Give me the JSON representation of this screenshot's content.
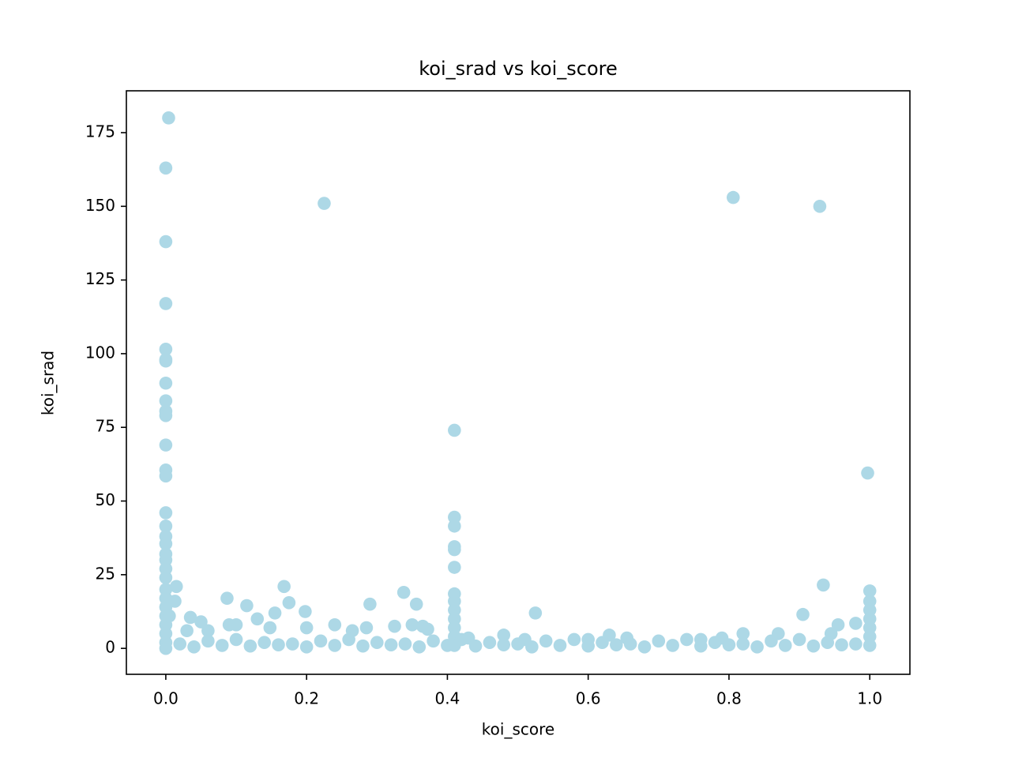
{
  "chart_data": {
    "type": "scatter",
    "title": "koi_srad vs koi_score",
    "x_label": "koi_score",
    "y_label": "koi_srad",
    "color": "#add8e6",
    "xlim": [
      -0.056,
      1.057
    ],
    "ylim": [
      -8.8,
      189.2
    ],
    "xticks": [
      {
        "value": 0,
        "label": "0.0"
      },
      0.2,
      0.4,
      0.6,
      0.8,
      {
        "value": 1,
        "label": "1.0"
      }
    ],
    "yticks": [
      0,
      25,
      50,
      75,
      100,
      125,
      150,
      175
    ],
    "grid": false,
    "x": [
      0.004,
      0,
      0,
      0,
      0,
      0,
      0,
      0,
      0,
      0,
      0,
      0,
      0,
      0,
      0,
      0,
      0,
      0,
      0,
      0,
      0,
      0,
      0,
      0,
      0,
      0,
      0,
      0,
      0,
      0,
      0.015,
      0.013,
      0.005,
      0.225,
      0.806,
      0.929,
      0.41,
      0.41,
      0.41,
      0.41,
      0.41,
      0.41,
      0.41,
      0.41,
      0.41,
      0.41,
      0.41,
      0.41,
      0.41,
      0.997,
      1,
      1,
      1,
      1,
      1,
      1,
      1,
      0.934,
      0.905,
      0.525,
      0.087,
      0.115,
      0.168,
      0.175,
      0.155,
      0.198,
      0.29,
      0.338,
      0.356,
      0.035,
      0.05,
      0.13,
      0.148,
      0.2,
      0.24,
      0.325,
      0.35,
      0.365,
      0.372,
      0.03,
      0.06,
      0.09,
      0.1,
      0.285,
      0.265,
      0.955,
      0.98,
      0.945,
      0.48,
      0.63,
      0.655,
      0.82,
      0.87,
      0.6,
      0.79,
      0.76,
      0.43,
      0.51,
      0.02,
      0.04,
      0.06,
      0.08,
      0.1,
      0.12,
      0.14,
      0.16,
      0.18,
      0.2,
      0.22,
      0.24,
      0.26,
      0.28,
      0.3,
      0.32,
      0.34,
      0.36,
      0.38,
      0.4,
      0.42,
      0.44,
      0.46,
      0.48,
      0.5,
      0.52,
      0.54,
      0.56,
      0.58,
      0.6,
      0.62,
      0.64,
      0.66,
      0.68,
      0.7,
      0.72,
      0.74,
      0.76,
      0.78,
      0.8,
      0.82,
      0.84,
      0.86,
      0.88,
      0.9,
      0.92,
      0.94,
      0.96,
      0.98
    ],
    "values": [
      180,
      163,
      138,
      117,
      101.5,
      98,
      97.5,
      90,
      84,
      80.5,
      79,
      69,
      60.5,
      58.5,
      46,
      41.5,
      38,
      35.5,
      32,
      30,
      27,
      24,
      20,
      17,
      14,
      11,
      8,
      5,
      2,
      0,
      21,
      16,
      11,
      151,
      153,
      150,
      74,
      44.5,
      41.5,
      34.5,
      33.5,
      27.5,
      18.5,
      16,
      13,
      10,
      7,
      4,
      1,
      59.5,
      19.5,
      16,
      13,
      10,
      7,
      4,
      1,
      21.5,
      11.5,
      12,
      17,
      14.5,
      21,
      15.5,
      12,
      12.5,
      15,
      19,
      15,
      10.5,
      9,
      10,
      7,
      7,
      8,
      7.5,
      8,
      7.5,
      6.5,
      6,
      6,
      8,
      8,
      7,
      6,
      8,
      8.5,
      5,
      4.5,
      4.5,
      3.5,
      5,
      5,
      3,
      3.5,
      3,
      3.5,
      3,
      1.5,
      0.5,
      2.5,
      1,
      3,
      0.8,
      2,
      1.2,
      1.5,
      0.5,
      2.5,
      1,
      3,
      0.8,
      2,
      1.2,
      1.5,
      0.5,
      2.5,
      1,
      3,
      0.8,
      2,
      1.2,
      1.5,
      0.5,
      2.5,
      1,
      3,
      0.8,
      2,
      1.2,
      1.5,
      0.5,
      2.5,
      1,
      3,
      0.8,
      2,
      1.2,
      1.5,
      0.5,
      2.5,
      1,
      3,
      0.8,
      2,
      1.2,
      1.5
    ]
  }
}
